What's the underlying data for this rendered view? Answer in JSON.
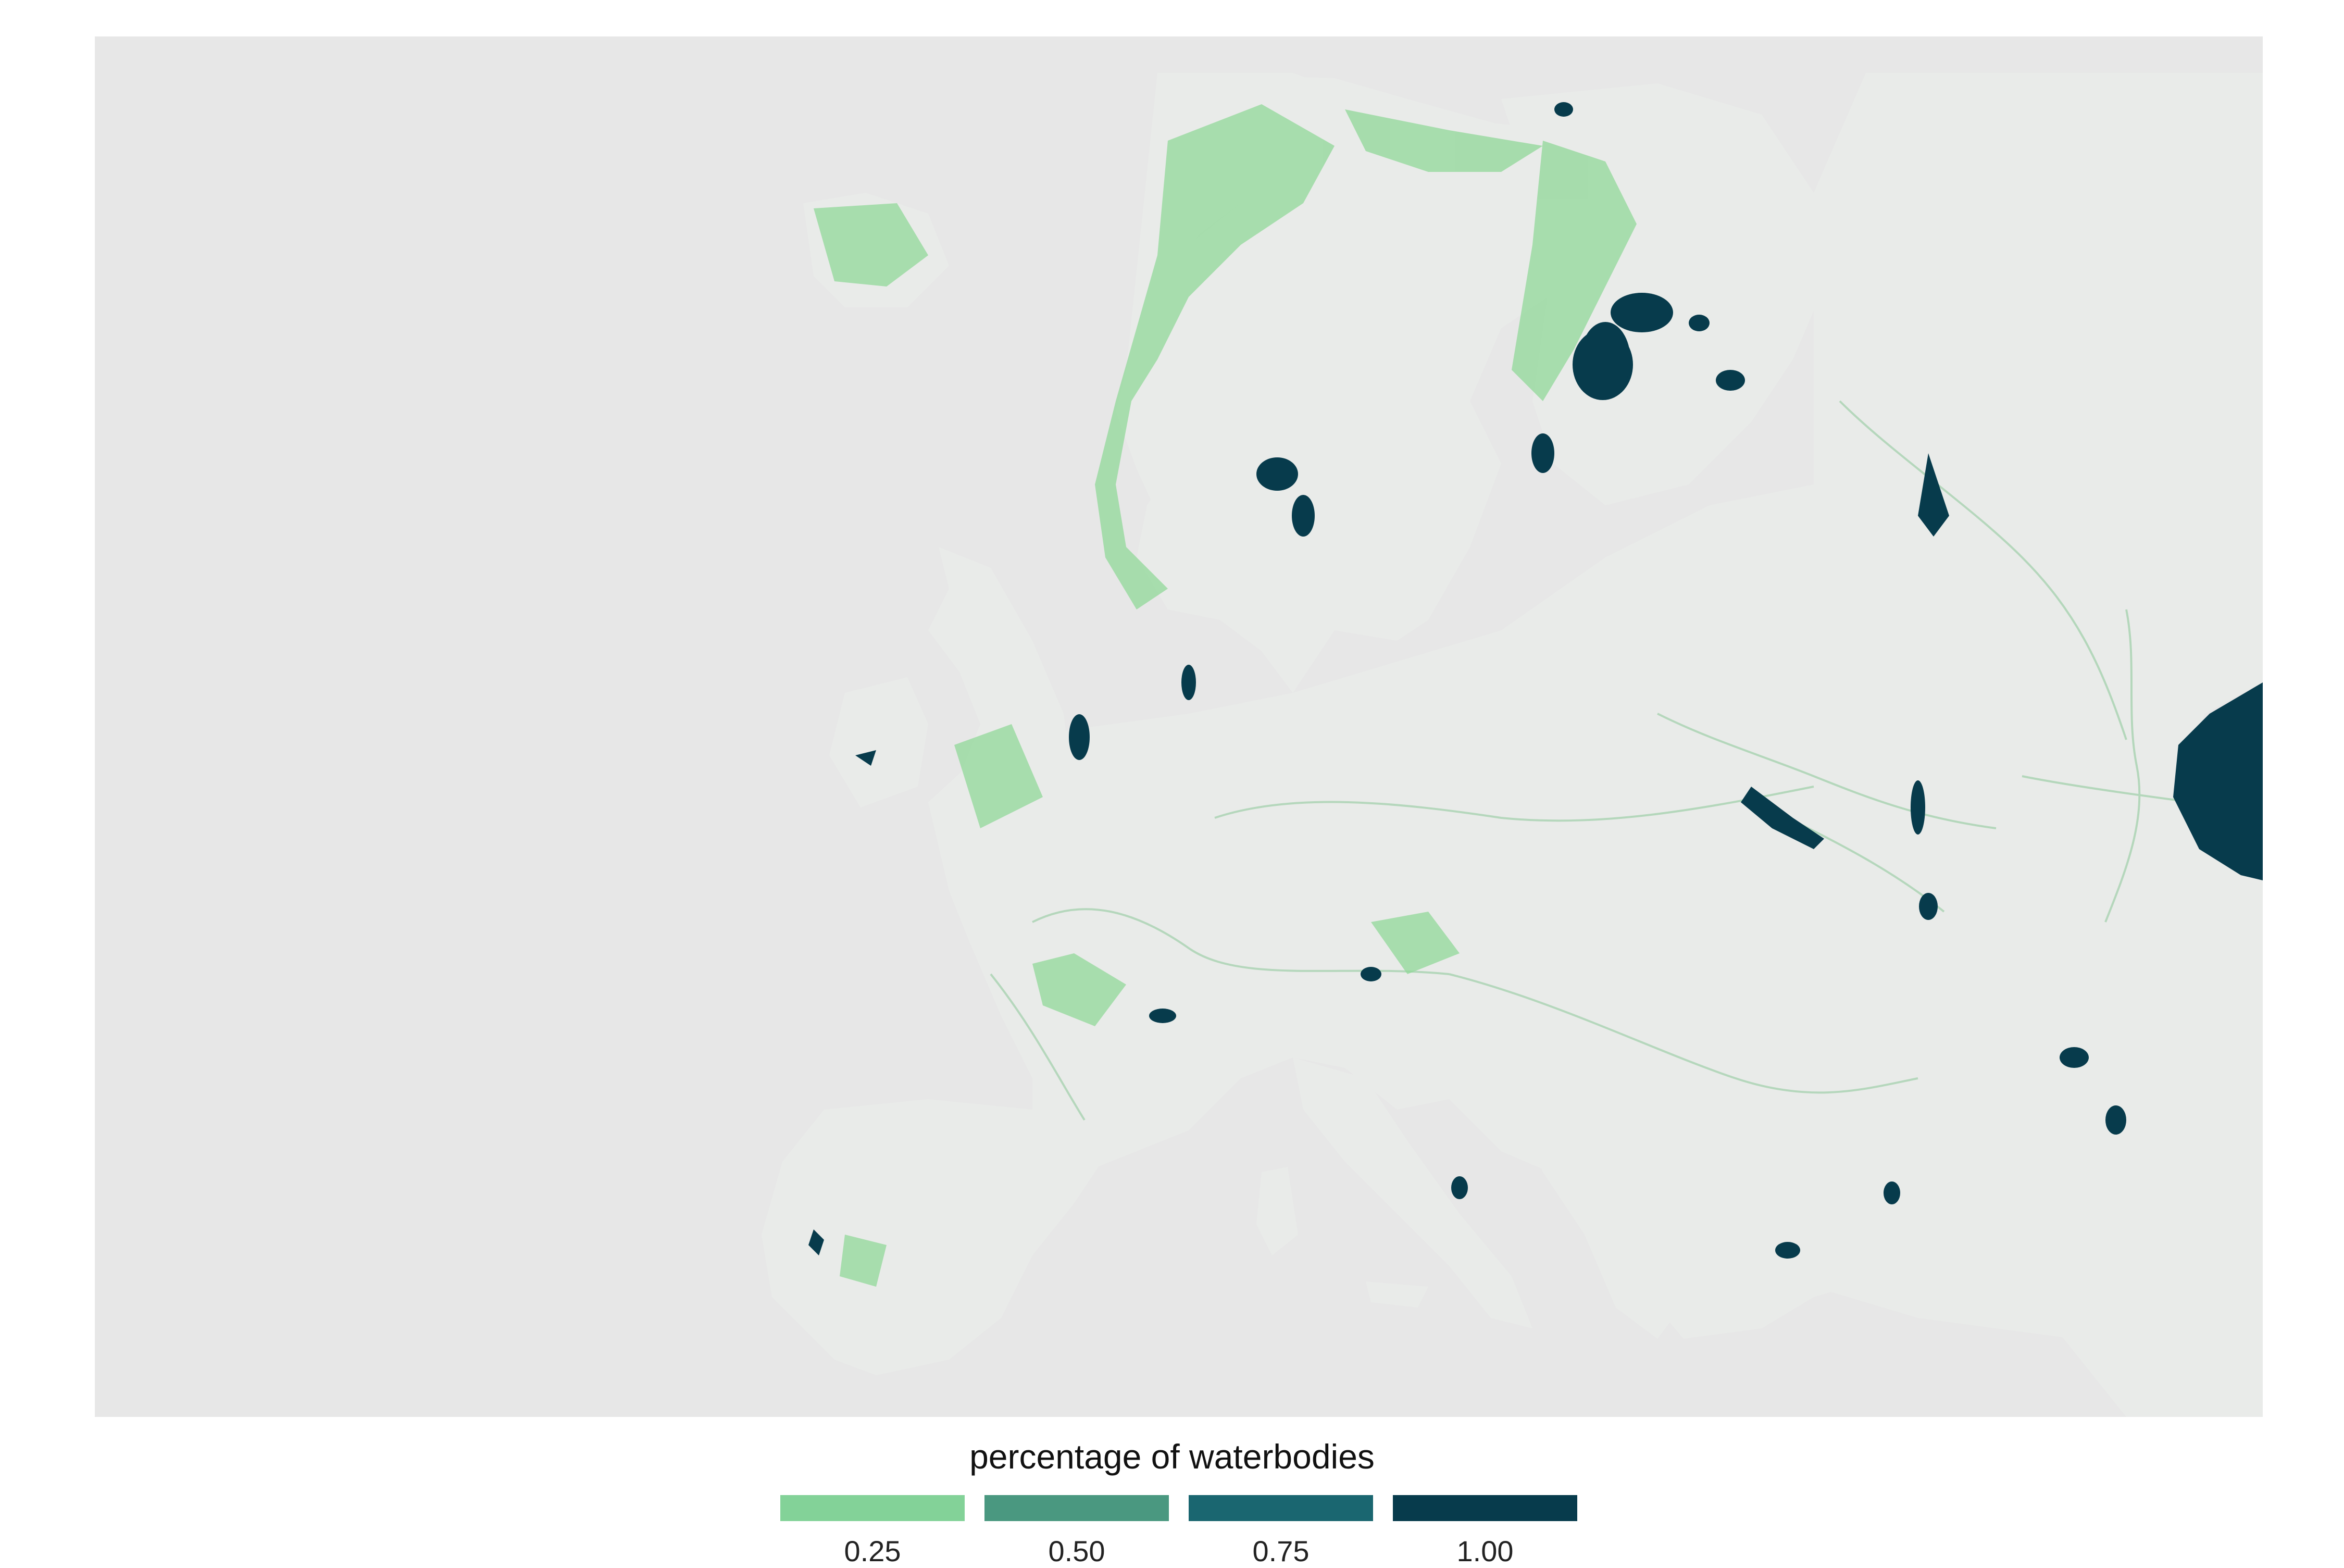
{
  "map": {
    "type": "raster-choropleth",
    "region": "Europe",
    "background_color": "#e7e7e7",
    "land_color": "#e9ebe9",
    "low_color": "#90d898",
    "water_color": "#073b4c"
  },
  "legend": {
    "title": "percentage of waterbodies",
    "position": "bottom",
    "items": [
      {
        "label": "0.25",
        "color": "#83d298"
      },
      {
        "label": "0.50",
        "color": "#4a9880"
      },
      {
        "label": "0.75",
        "color": "#1a6670"
      },
      {
        "label": "1.00",
        "color": "#073b4c"
      }
    ]
  }
}
